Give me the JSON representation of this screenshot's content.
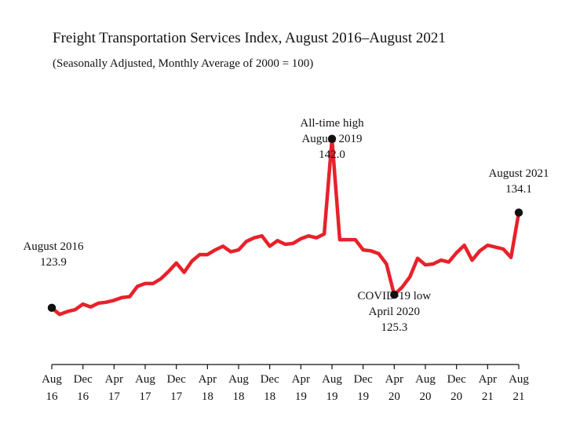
{
  "chart_data": {
    "type": "line",
    "title": "Freight Transportation Services Index, August 2016–August 2021",
    "subtitle": "(Seasonally Adjusted, Monthly Average of 2000 = 100)",
    "xlabel": "",
    "ylabel": "",
    "ylim": [
      118,
      145
    ],
    "grid": false,
    "legend": "none",
    "line_color": "#e8212a",
    "marker_color": "#111111",
    "x_ticks": [
      {
        "month": "Aug",
        "year": "16"
      },
      {
        "month": "Dec",
        "year": "16"
      },
      {
        "month": "Apr",
        "year": "17"
      },
      {
        "month": "Aug",
        "year": "17"
      },
      {
        "month": "Dec",
        "year": "17"
      },
      {
        "month": "Apr",
        "year": "18"
      },
      {
        "month": "Aug",
        "year": "18"
      },
      {
        "month": "Dec",
        "year": "18"
      },
      {
        "month": "Apr",
        "year": "19"
      },
      {
        "month": "Aug",
        "year": "19"
      },
      {
        "month": "Dec",
        "year": "19"
      },
      {
        "month": "Apr",
        "year": "20"
      },
      {
        "month": "Aug",
        "year": "20"
      },
      {
        "month": "Dec",
        "year": "20"
      },
      {
        "month": "Apr",
        "year": "21"
      },
      {
        "month": "Aug",
        "year": "21"
      }
    ],
    "x": [
      "2016-08",
      "2016-09",
      "2016-10",
      "2016-11",
      "2016-12",
      "2017-01",
      "2017-02",
      "2017-03",
      "2017-04",
      "2017-05",
      "2017-06",
      "2017-07",
      "2017-08",
      "2017-09",
      "2017-10",
      "2017-11",
      "2017-12",
      "2018-01",
      "2018-02",
      "2018-03",
      "2018-04",
      "2018-05",
      "2018-06",
      "2018-07",
      "2018-08",
      "2018-09",
      "2018-10",
      "2018-11",
      "2018-12",
      "2019-01",
      "2019-02",
      "2019-03",
      "2019-04",
      "2019-05",
      "2019-06",
      "2019-07",
      "2019-08",
      "2019-09",
      "2019-10",
      "2019-11",
      "2019-12",
      "2020-01",
      "2020-02",
      "2020-03",
      "2020-04",
      "2020-05",
      "2020-06",
      "2020-07",
      "2020-08",
      "2020-09",
      "2020-10",
      "2020-11",
      "2020-12",
      "2021-01",
      "2021-02",
      "2021-03",
      "2021-04",
      "2021-05",
      "2021-06",
      "2021-07",
      "2021-08"
    ],
    "series": [
      {
        "values": [
          123.9,
          123.2,
          123.5,
          123.7,
          124.3,
          124.0,
          124.4,
          124.5,
          124.7,
          125.0,
          125.1,
          126.2,
          126.5,
          126.5,
          127.0,
          127.8,
          128.7,
          127.7,
          128.9,
          129.6,
          129.6,
          130.1,
          130.5,
          129.9,
          130.1,
          131.0,
          131.4,
          131.6,
          130.5,
          131.1,
          130.7,
          130.8,
          131.3,
          131.6,
          131.4,
          131.8,
          142.0,
          131.2,
          131.2,
          131.2,
          130.1,
          130.0,
          129.7,
          128.6,
          125.3,
          126.1,
          127.2,
          129.2,
          128.5,
          128.6,
          129.0,
          128.8,
          129.8,
          130.6,
          129.0,
          130.0,
          130.6,
          130.4,
          130.2,
          129.3,
          134.1
        ]
      }
    ],
    "annotations": [
      {
        "id": "start",
        "x": "2016-08",
        "value": 123.9,
        "lines": [
          "August 2016",
          "123.9"
        ]
      },
      {
        "id": "high",
        "x": "2019-08",
        "value": 142.0,
        "lines": [
          "All-time high",
          "August 2019",
          "142.0"
        ]
      },
      {
        "id": "low",
        "x": "2020-04",
        "value": 125.3,
        "lines": [
          "COVID-19 low",
          "April 2020",
          "125.3"
        ]
      },
      {
        "id": "end",
        "x": "2021-08",
        "value": 134.1,
        "lines": [
          "August 2021",
          "134.1"
        ]
      }
    ]
  }
}
